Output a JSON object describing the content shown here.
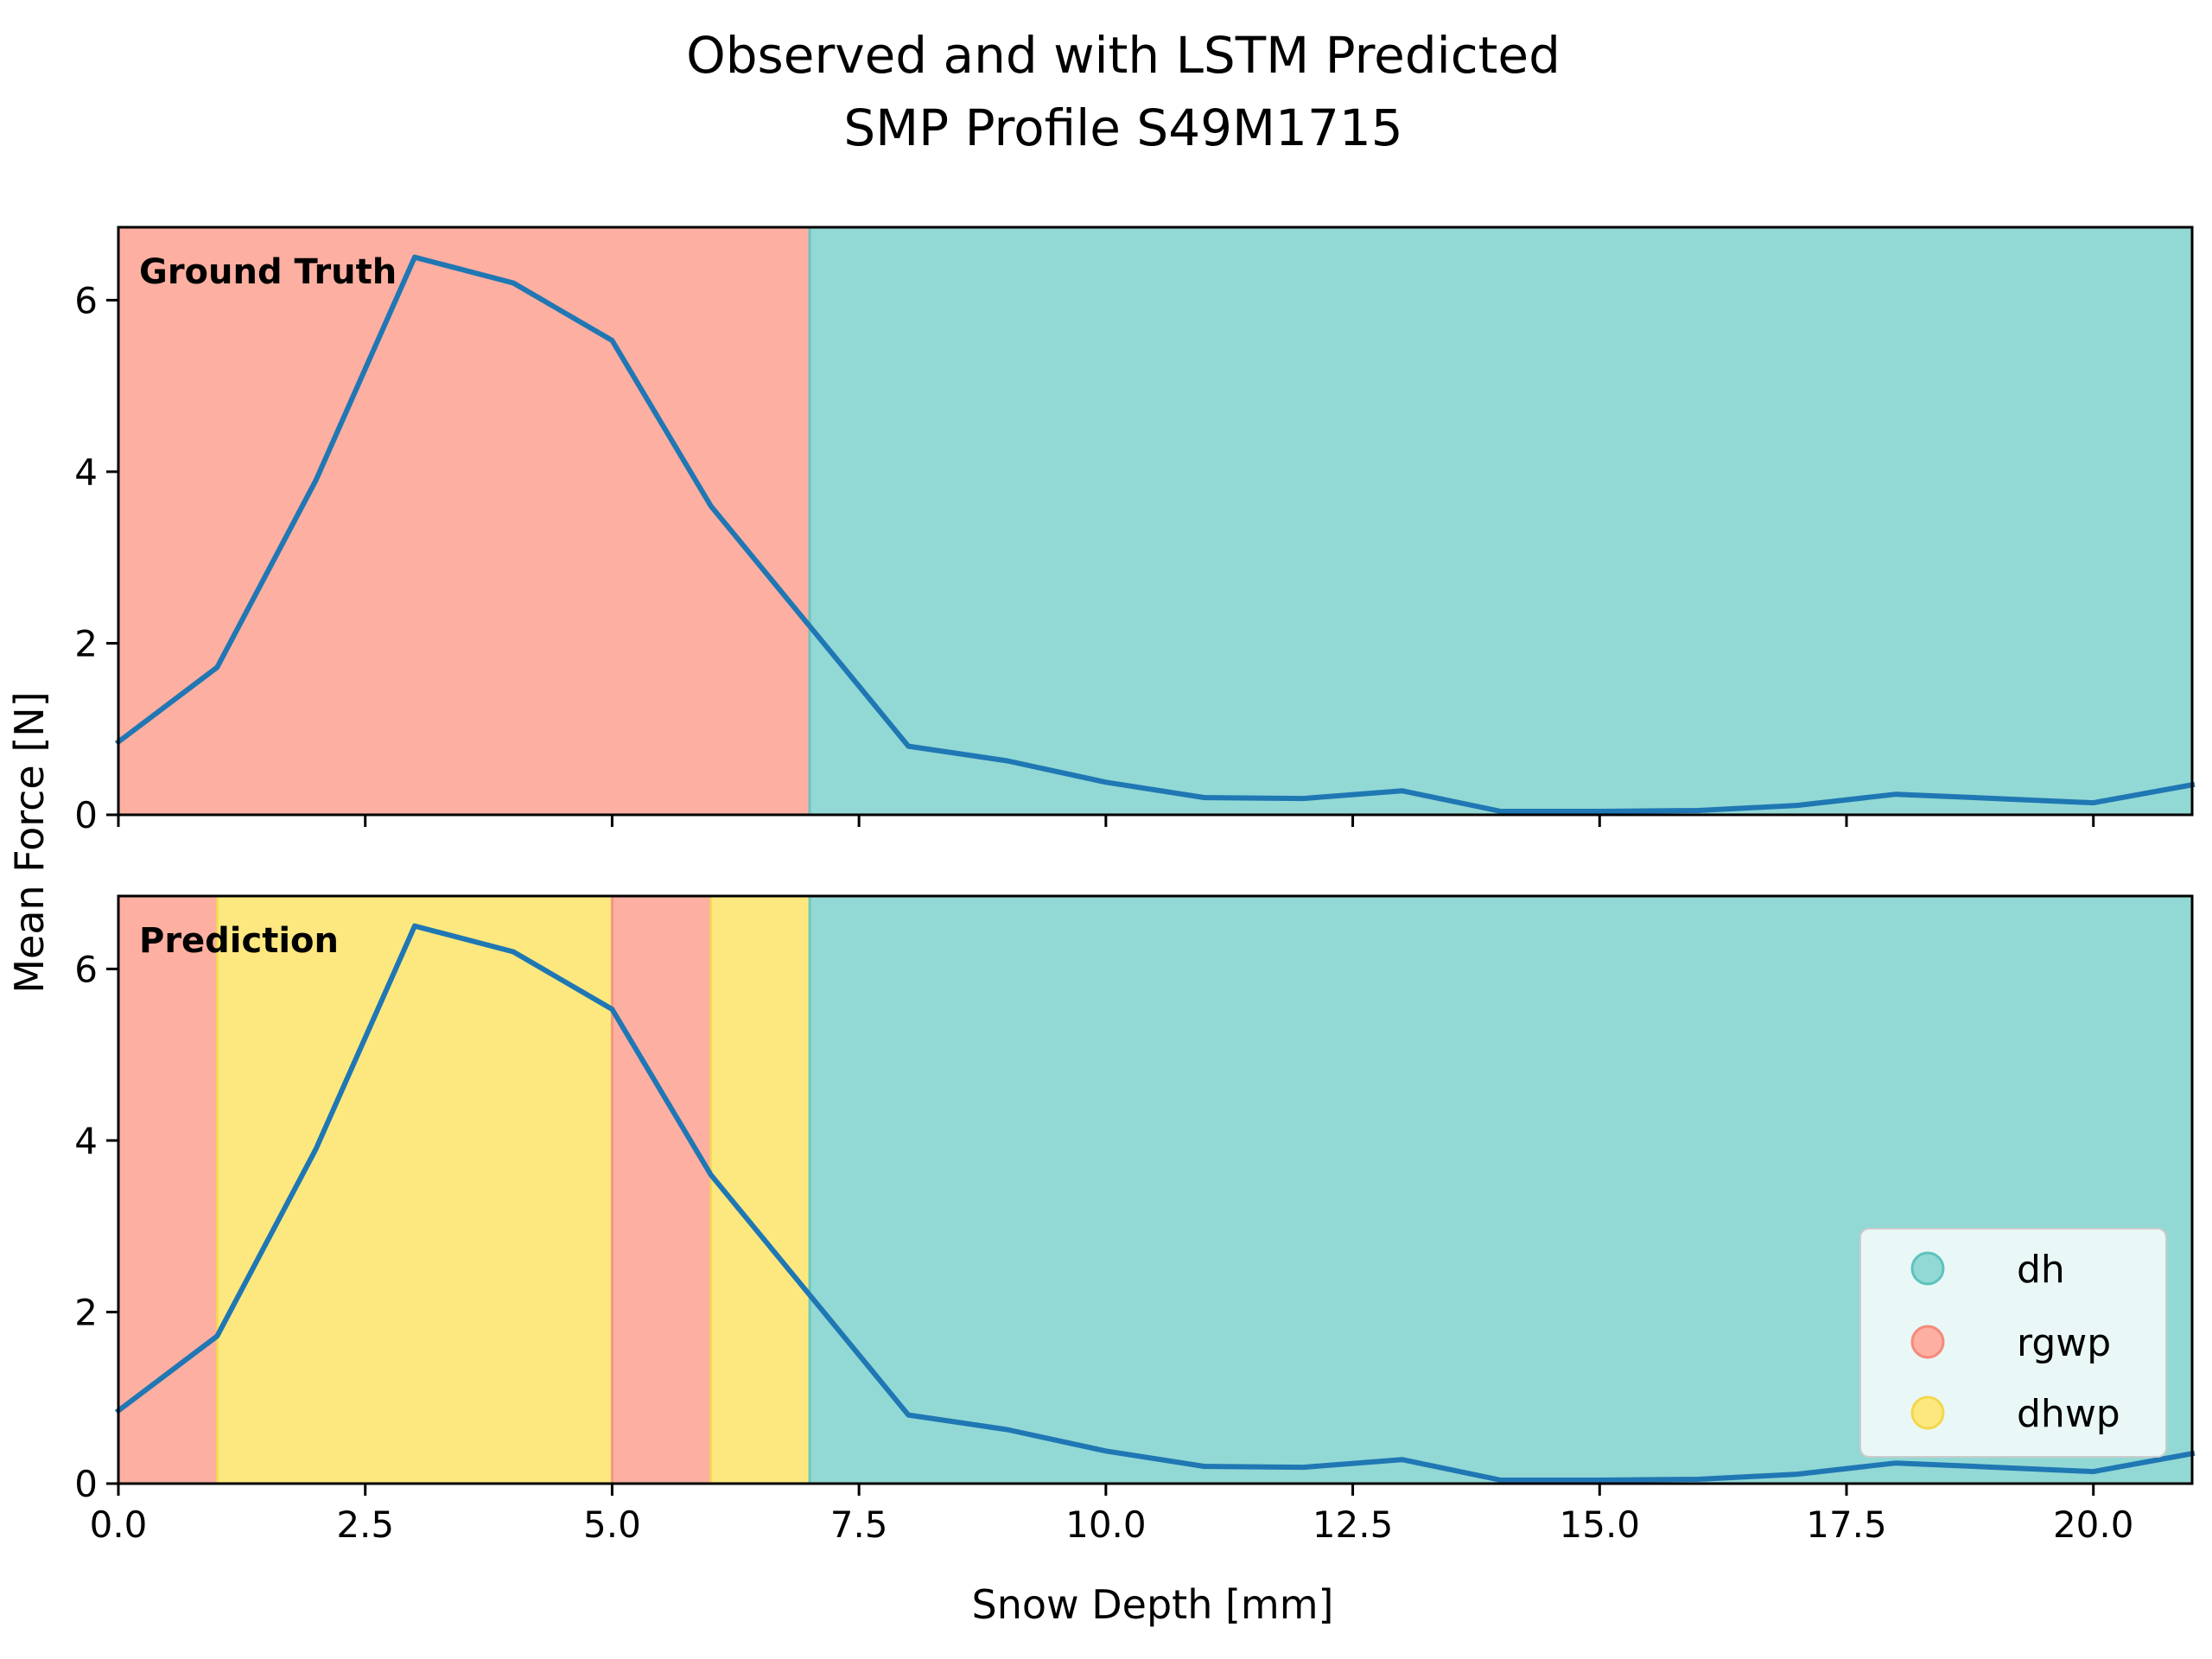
{
  "figure": {
    "title_line1": "Observed and with LSTM Predicted",
    "title_line2": "SMP Profile S49M1715",
    "xlabel": "Snow Depth [mm]",
    "ylabel": "Mean Force [N]"
  },
  "colors": {
    "dh": "#92d8d4",
    "rgwp": "#fdafa1",
    "dhwp": "#fde87f",
    "line": "#1f77b4",
    "legend_dh": "#5cc3bd",
    "legend_rgwp": "#f48a7b",
    "legend_dhwp": "#f2d84b"
  },
  "legend": {
    "items": [
      {
        "key": "dh",
        "label": "dh"
      },
      {
        "key": "rgwp",
        "label": "rgwp"
      },
      {
        "key": "dhwp",
        "label": "dhwp"
      }
    ],
    "placement": "lower-right"
  },
  "chart_data": [
    {
      "type": "line",
      "panel_label": "Ground Truth",
      "x": [
        0,
        1,
        2,
        3,
        4,
        5,
        6,
        7,
        8,
        9,
        10,
        11,
        12,
        13,
        14,
        15,
        16,
        17,
        18,
        19,
        20,
        21
      ],
      "y": [
        0.85,
        1.72,
        3.9,
        6.5,
        6.2,
        5.53,
        3.6,
        2.2,
        0.8,
        0.63,
        0.38,
        0.2,
        0.19,
        0.28,
        0.04,
        0.04,
        0.05,
        0.11,
        0.24,
        0.19,
        0.14,
        0.35
      ],
      "segments": [
        {
          "start": 0,
          "end": 7,
          "class": "rgwp"
        },
        {
          "start": 7,
          "end": 21,
          "class": "dh"
        }
      ],
      "xlim": [
        0,
        21
      ],
      "ylim": [
        0,
        6.85
      ],
      "yticks": [
        0,
        2,
        4,
        6
      ],
      "xticks": [
        0,
        2.5,
        5,
        7.5,
        10,
        12.5,
        15,
        17.5,
        20
      ],
      "show_xticklabels": false,
      "grid": false
    },
    {
      "type": "line",
      "panel_label": "Prediction",
      "x": [
        0,
        1,
        2,
        3,
        4,
        5,
        6,
        7,
        8,
        9,
        10,
        11,
        12,
        13,
        14,
        15,
        16,
        17,
        18,
        19,
        20,
        21
      ],
      "y": [
        0.85,
        1.72,
        3.9,
        6.5,
        6.2,
        5.53,
        3.6,
        2.2,
        0.8,
        0.63,
        0.38,
        0.2,
        0.19,
        0.28,
        0.04,
        0.04,
        0.05,
        0.11,
        0.24,
        0.19,
        0.14,
        0.35
      ],
      "segments": [
        {
          "start": 0,
          "end": 1,
          "class": "rgwp"
        },
        {
          "start": 1,
          "end": 5,
          "class": "dhwp"
        },
        {
          "start": 5,
          "end": 6,
          "class": "rgwp"
        },
        {
          "start": 6,
          "end": 7,
          "class": "dhwp"
        },
        {
          "start": 7,
          "end": 21,
          "class": "dh"
        }
      ],
      "xlim": [
        0,
        21
      ],
      "ylim": [
        0,
        6.85
      ],
      "yticks": [
        0,
        2,
        4,
        6
      ],
      "xticks": [
        0,
        2.5,
        5,
        7.5,
        10,
        12.5,
        15,
        17.5,
        20
      ],
      "xtick_labels": [
        "0.0",
        "2.5",
        "5.0",
        "7.5",
        "10.0",
        "12.5",
        "15.0",
        "17.5",
        "20.0"
      ],
      "show_xticklabels": true,
      "grid": false
    }
  ]
}
